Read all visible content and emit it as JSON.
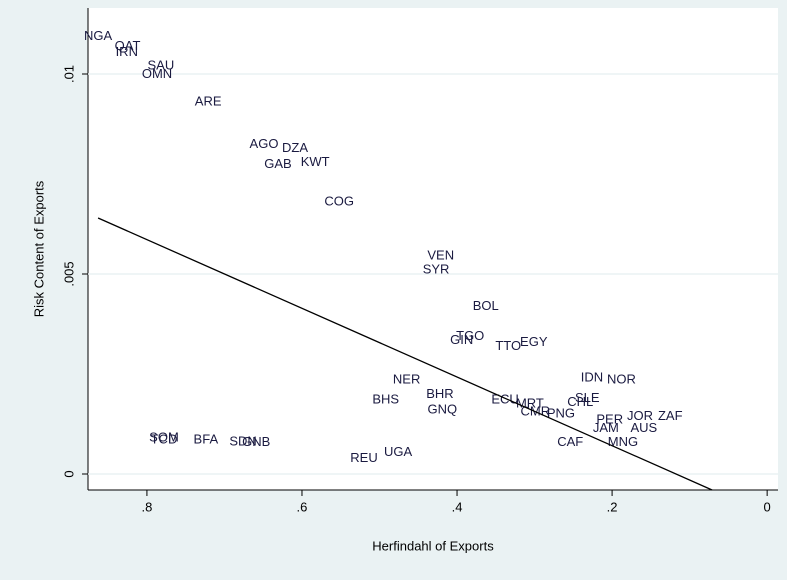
{
  "chart_data": {
    "type": "scatter",
    "x_label": "Herfindahl of Exports",
    "y_label": "Risk Content of Exports",
    "labels": [
      "NGA",
      "QAT",
      "IRN",
      "SAU",
      "OMN",
      "ARE",
      "AGO",
      "DZA",
      "GAB",
      "KWT",
      "COG",
      "VEN",
      "SYR",
      "BOL",
      "TGO",
      "GIN",
      "TTO",
      "EGY",
      "IDN",
      "NOR",
      "NER",
      "BHR",
      "BHS",
      "GNQ",
      "ECU",
      "MRT",
      "SLE",
      "CHL",
      "CMR",
      "PNG",
      "PER",
      "JOR",
      "ZAF",
      "JAM",
      "AUS",
      "SOM",
      "TCD",
      "BFA",
      "SDN",
      "GNB",
      "REU",
      "UGA",
      "MNG",
      "CAF"
    ],
    "x": [
      0.863,
      0.825,
      0.826,
      0.782,
      0.787,
      0.721,
      0.649,
      0.609,
      0.631,
      0.583,
      0.552,
      0.421,
      0.427,
      0.363,
      0.383,
      0.394,
      0.334,
      0.301,
      0.226,
      0.188,
      0.465,
      0.422,
      0.492,
      0.419,
      0.338,
      0.306,
      0.232,
      0.241,
      0.299,
      0.266,
      0.203,
      0.164,
      0.125,
      0.208,
      0.159,
      0.778,
      0.778,
      0.724,
      0.676,
      0.659,
      0.52,
      0.476,
      0.186,
      0.254
    ],
    "values": [
      0.01093,
      0.01068,
      0.01053,
      0.0102,
      0.00998,
      0.0093,
      0.00823,
      0.00813,
      0.00773,
      0.00778,
      0.0068,
      0.00545,
      0.0051,
      0.00418,
      0.00343,
      0.00333,
      0.00318,
      0.00328,
      0.0024,
      0.00235,
      0.00235,
      0.00198,
      0.00185,
      0.0016,
      0.00185,
      0.00175,
      0.00188,
      0.00178,
      0.00155,
      0.0015,
      0.00135,
      0.00143,
      0.00143,
      0.00113,
      0.00113,
      0.0009,
      0.00085,
      0.00085,
      0.0008,
      0.00078,
      0.00038,
      0.00053,
      0.00078,
      0.00078
    ],
    "fit": {
      "x": [
        0.863,
        0.071
      ],
      "y": [
        0.0064,
        -0.0004
      ]
    },
    "color": "#1a1a40",
    "xlim": [
      0.876,
      -0.014
    ],
    "ylim": [
      -0.0004,
      0.01165
    ],
    "xticks": [
      {
        "value": 0.8,
        "label": ".8"
      },
      {
        "value": 0.6,
        "label": ".6"
      },
      {
        "value": 0.4,
        "label": ".4"
      },
      {
        "value": 0.2,
        "label": ".2"
      },
      0
    ],
    "yticks": [
      0,
      {
        "value": 0.005,
        "label": ".005"
      },
      {
        "value": 0.01,
        "label": ".01"
      }
    ],
    "grid": true
  }
}
